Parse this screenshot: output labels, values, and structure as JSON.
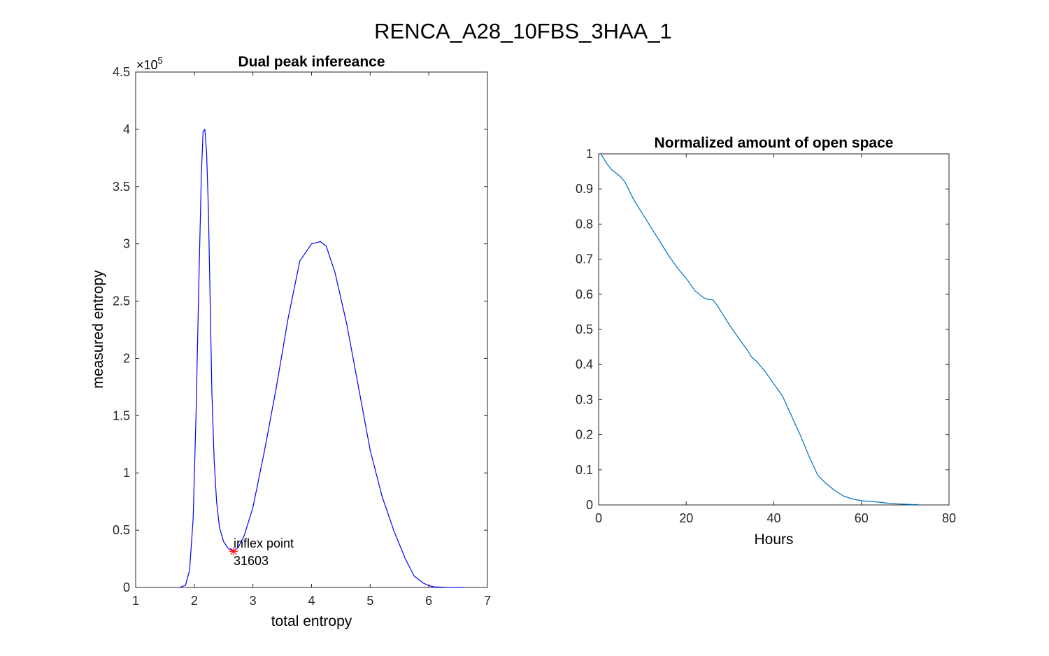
{
  "figure": {
    "title": "RENCA_A28_10FBS_3HAA_1"
  },
  "chart_data": [
    {
      "type": "line",
      "title": "Dual peak infereance",
      "xlabel": "total entropy",
      "ylabel": "measured entropy",
      "xlim": [
        1,
        7
      ],
      "ylim": [
        0,
        450000
      ],
      "xticks": [
        1,
        2,
        3,
        4,
        5,
        6,
        7
      ],
      "yticks": [
        0,
        50000,
        100000,
        150000,
        200000,
        250000,
        300000,
        350000,
        400000,
        450000
      ],
      "ytick_labels": [
        "0",
        "0.5",
        "1",
        "1.5",
        "2",
        "2.5",
        "3",
        "3.5",
        "4",
        "4.5"
      ],
      "y_exponent_base": "×10",
      "y_exponent_power": "5",
      "grid": false,
      "series": [
        {
          "color": "#0000ff",
          "x": [
            1.75,
            1.85,
            1.92,
            1.98,
            2.03,
            2.08,
            2.12,
            2.15,
            2.18,
            2.21,
            2.24,
            2.27,
            2.3,
            2.34,
            2.38,
            2.43,
            2.5,
            2.58,
            2.67,
            2.75,
            2.85,
            3.0,
            3.2,
            3.4,
            3.6,
            3.8,
            4.0,
            4.15,
            4.25,
            4.4,
            4.6,
            4.8,
            5.0,
            5.2,
            5.4,
            5.6,
            5.75,
            5.9,
            6.0,
            6.1,
            6.3,
            6.6
          ],
          "y": [
            0,
            2000,
            15000,
            60000,
            150000,
            270000,
            360000,
            398000,
            400000,
            380000,
            330000,
            250000,
            170000,
            110000,
            75000,
            52000,
            40000,
            34000,
            31600,
            35000,
            45000,
            70000,
            120000,
            175000,
            235000,
            285000,
            300000,
            302000,
            298000,
            275000,
            230000,
            175000,
            120000,
            80000,
            50000,
            25000,
            10000,
            4000,
            1500,
            500,
            100,
            0
          ]
        }
      ],
      "annotation": {
        "marker": "*",
        "marker_color": "#ff0000",
        "x": 2.67,
        "y": 31603,
        "text_line1": "inflex point",
        "text_line2": "31603"
      }
    },
    {
      "type": "line",
      "title": "Normalized amount of open space",
      "xlabel": "Hours",
      "ylabel": "",
      "xlim": [
        0,
        80
      ],
      "ylim": [
        0,
        1
      ],
      "xticks": [
        0,
        20,
        40,
        60,
        80
      ],
      "yticks": [
        0,
        0.1,
        0.2,
        0.3,
        0.4,
        0.5,
        0.6,
        0.7,
        0.8,
        0.9,
        1
      ],
      "ytick_labels": [
        "0",
        "0.1",
        "0.2",
        "0.3",
        "0.4",
        "0.5",
        "0.6",
        "0.7",
        "0.8",
        "0.9",
        "1"
      ],
      "grid": false,
      "series": [
        {
          "color": "#0072bd",
          "x": [
            0.5,
            1,
            2,
            3,
            4,
            5,
            6,
            7,
            8,
            10,
            12,
            14,
            16,
            18,
            20,
            22,
            24,
            25,
            26,
            27,
            28,
            30,
            32,
            34,
            35,
            36,
            38,
            40,
            42,
            44,
            46,
            48,
            50,
            52,
            54,
            56,
            58,
            60,
            62,
            64,
            66,
            68,
            70,
            72,
            73
          ],
          "y": [
            1.0,
            0.99,
            0.97,
            0.955,
            0.945,
            0.935,
            0.92,
            0.895,
            0.87,
            0.83,
            0.79,
            0.75,
            0.71,
            0.675,
            0.645,
            0.61,
            0.59,
            0.585,
            0.585,
            0.57,
            0.55,
            0.51,
            0.475,
            0.44,
            0.42,
            0.41,
            0.38,
            0.345,
            0.31,
            0.255,
            0.2,
            0.14,
            0.085,
            0.06,
            0.04,
            0.025,
            0.017,
            0.012,
            0.01,
            0.008,
            0.005,
            0.003,
            0.002,
            0.001,
            0.001
          ]
        }
      ]
    }
  ]
}
